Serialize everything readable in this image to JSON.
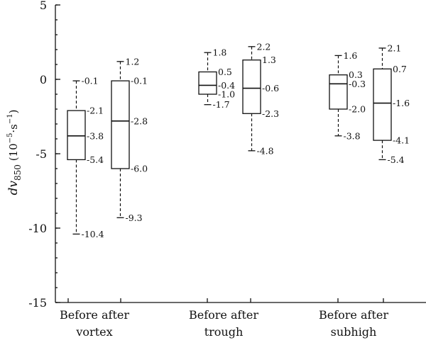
{
  "chart_data": {
    "type": "box",
    "ylabel_main": "dv",
    "ylabel_sub": "850",
    "ylabel_unit_open": " (10",
    "ylabel_unit_exp1": "−5",
    "ylabel_unit_mid": "·s",
    "ylabel_unit_exp2": "−1",
    "ylabel_unit_close": ")",
    "ylim": [
      -15,
      5
    ],
    "yticks": [
      {
        "value": 5,
        "label": "5"
      },
      {
        "value": 0,
        "label": "0"
      },
      {
        "value": -5,
        "label": "-5"
      },
      {
        "value": -10,
        "label": "-10"
      },
      {
        "value": -15,
        "label": "-15"
      }
    ],
    "minor_step": 1,
    "groups": [
      {
        "line1": "Before after",
        "line2": "vortex"
      },
      {
        "line1": "Before after",
        "line2": "trough"
      },
      {
        "line1": "Before after",
        "line2": "subhigh"
      }
    ],
    "boxes": [
      {
        "group": 0,
        "slot": "before",
        "max": -0.1,
        "q3": -2.1,
        "median": -3.8,
        "q1": -5.4,
        "min": -10.4,
        "labels": {
          "max": "-0.1",
          "q3": "-2.1",
          "median": "-3.8",
          "q1": "-5.4",
          "min": "-10.4"
        }
      },
      {
        "group": 0,
        "slot": "after",
        "max": 1.2,
        "q3": -0.1,
        "median": -2.8,
        "q1": -6.0,
        "min": -9.3,
        "labels": {
          "max": "1.2",
          "q3": "-0.1",
          "median": "-2.8",
          "q1": "-6.0",
          "min": "-9.3"
        }
      },
      {
        "group": 1,
        "slot": "before",
        "max": 1.8,
        "q3": 0.5,
        "median": -0.4,
        "q1": -1.0,
        "min": -1.7,
        "labels": {
          "max": "1.8",
          "q3": "0.5",
          "median": "-0.4",
          "q1": "-1.0",
          "min": "-1.7"
        }
      },
      {
        "group": 1,
        "slot": "after",
        "max": 2.2,
        "q3": 1.3,
        "median": -0.6,
        "q1": -2.3,
        "min": -4.8,
        "labels": {
          "max": "2.2",
          "q3": "1.3",
          "median": "-0.6",
          "q1": "-2.3",
          "min": "-4.8"
        }
      },
      {
        "group": 2,
        "slot": "before",
        "max": 1.6,
        "q3": 0.3,
        "median": -0.3,
        "q1": -2.0,
        "min": -3.8,
        "labels": {
          "max": "1.6",
          "q3": "0.3",
          "median": "-0.3",
          "q1": "-2.0",
          "min": "-3.8"
        }
      },
      {
        "group": 2,
        "slot": "after",
        "max": 2.1,
        "q3": 0.7,
        "median": -1.6,
        "q1": -4.1,
        "min": -5.4,
        "labels": {
          "max": "2.1",
          "q3": "0.7",
          "median": "-1.6",
          "q1": "-4.1",
          "min": "-5.4"
        }
      }
    ],
    "grid": false,
    "legend": "none"
  }
}
